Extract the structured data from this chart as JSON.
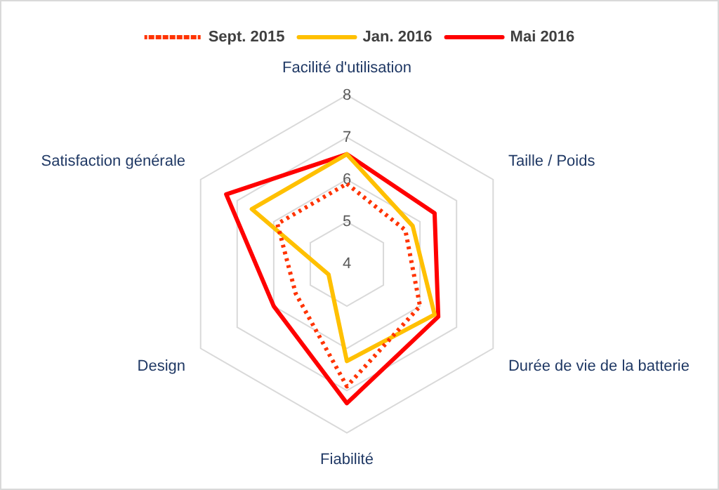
{
  "chart_data": {
    "type": "radar",
    "categories": [
      "Facilité d'utilisation",
      "Taille / Poids",
      "Durée de vie de la batterie",
      "Fiabilité",
      "Design",
      "Satisfaction générale"
    ],
    "series": [
      {
        "name": "Sept. 2015",
        "color": "#ff3300",
        "line_style": "dotted",
        "values": [
          5.9,
          5.6,
          6.0,
          6.9,
          5.4,
          5.9
        ]
      },
      {
        "name": "Jan. 2016",
        "color": "#ffc000",
        "line_style": "solid",
        "values": [
          6.6,
          5.8,
          6.4,
          6.3,
          4.5,
          6.6
        ]
      },
      {
        "name": "Mai 2016",
        "color": "#ff0000",
        "line_style": "solid",
        "values": [
          6.6,
          6.4,
          6.5,
          7.3,
          6.0,
          7.3
        ]
      }
    ],
    "ylim": [
      4,
      8
    ],
    "yticks": [
      4,
      5,
      6,
      7,
      8
    ],
    "grid": true,
    "legend": "top",
    "marker": "none"
  }
}
